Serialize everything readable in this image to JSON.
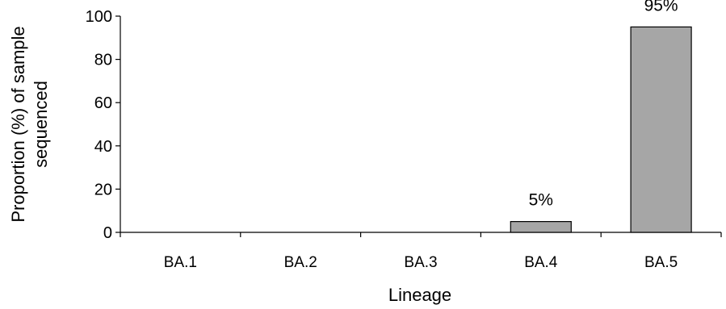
{
  "chart_data": {
    "type": "bar",
    "categories": [
      "BA.1",
      "BA.2",
      "BA.3",
      "BA.4",
      "BA.5"
    ],
    "values": [
      0,
      0,
      0,
      5,
      95
    ],
    "data_labels": [
      "",
      "",
      "",
      "5%",
      "95%"
    ],
    "xlabel": "Lineage",
    "ylabel": "Proportion (%) of sample sequenced",
    "ylabel_lines": [
      "Proportion (%) of sample",
      "sequenced"
    ],
    "ylim": [
      0,
      100
    ],
    "yticks": [
      0,
      20,
      40,
      60,
      80,
      100
    ],
    "bar_color": "#a6a6a6",
    "grid": false,
    "legend": "none"
  }
}
